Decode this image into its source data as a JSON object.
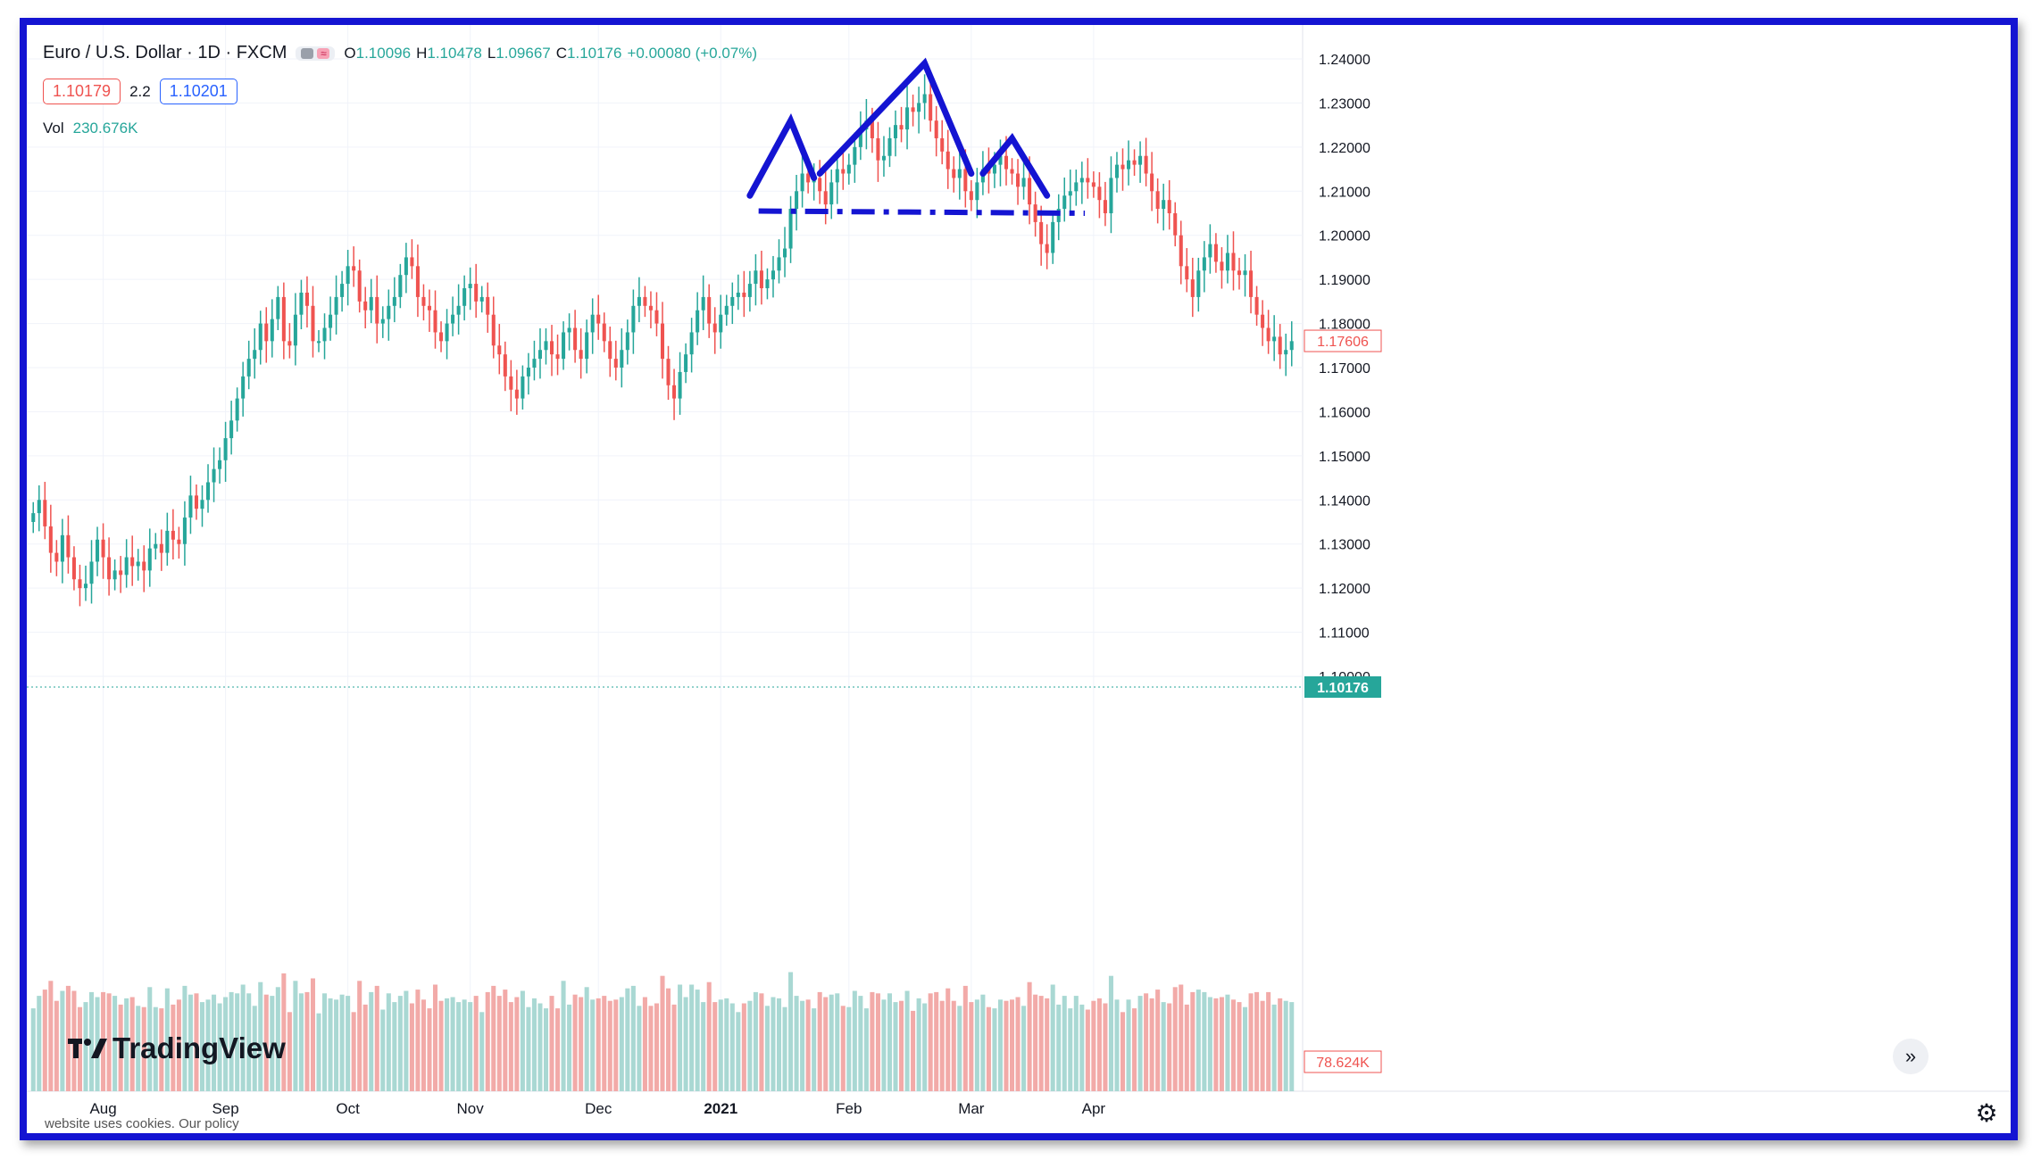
{
  "header": {
    "symbol_title": "Euro / U.S. Dollar · 1D · FXCM",
    "ohlc": [
      {
        "key": "O",
        "value": "1.10096"
      },
      {
        "key": "H",
        "value": "1.10478"
      },
      {
        "key": "L",
        "value": "1.09667"
      },
      {
        "key": "C",
        "value": "1.10176"
      },
      {
        "key": "",
        "value": "+0.00080 (+0.07%)"
      }
    ],
    "sell_price": "1.10179",
    "spread": "2.2",
    "buy_price": "1.10201",
    "vol_label": "Vol",
    "vol_value": "230.676K"
  },
  "footer": {
    "brand": "TradingView",
    "cookie_text": "website uses cookies. Our policy"
  },
  "colors": {
    "up": "#26a69a",
    "down": "#ef5350",
    "volume_up": "#a9d8d3",
    "volume_down": "#f2aaa8",
    "annotation": "#1414d2",
    "frame": "#1414d2"
  },
  "icons": [
    "tradingview-logo-icon",
    "scroll-right-icon",
    "settings-gear-icon",
    "compare-icon"
  ],
  "chart_data": {
    "type": "candlestick",
    "instrument": "Euro / U.S. Dollar",
    "timeframe": "1D",
    "x_ticks": [
      "Aug",
      "Sep",
      "Oct",
      "Nov",
      "Dec",
      "2021",
      "Feb",
      "Mar",
      "Apr"
    ],
    "y_ticks": [
      "1.24000",
      "1.23000",
      "1.22000",
      "1.21000",
      "1.20000",
      "1.19000",
      "1.18000",
      "1.17000",
      "1.16000",
      "1.15000",
      "1.14000",
      "1.13000",
      "1.12000",
      "1.11000",
      "1.10000"
    ],
    "ylim": [
      1.1,
      1.24
    ],
    "last_price_label": "1.17606",
    "current_price_label": "1.10176",
    "volume_label": "78.624K",
    "close_series": [
      1.137,
      1.14,
      1.134,
      1.128,
      1.126,
      1.132,
      1.127,
      1.122,
      1.12,
      1.121,
      1.126,
      1.131,
      1.127,
      1.122,
      1.124,
      1.123,
      1.127,
      1.125,
      1.126,
      1.124,
      1.129,
      1.13,
      1.128,
      1.133,
      1.131,
      1.13,
      1.136,
      1.141,
      1.138,
      1.14,
      1.144,
      1.147,
      1.149,
      1.154,
      1.158,
      1.163,
      1.168,
      1.172,
      1.174,
      1.18,
      1.176,
      1.181,
      1.186,
      1.176,
      1.175,
      1.182,
      1.187,
      1.184,
      1.176,
      1.176,
      1.179,
      1.182,
      1.186,
      1.189,
      1.193,
      1.192,
      1.185,
      1.183,
      1.186,
      1.18,
      1.181,
      1.184,
      1.186,
      1.191,
      1.195,
      1.193,
      1.186,
      1.184,
      1.183,
      1.178,
      1.176,
      1.18,
      1.182,
      1.184,
      1.188,
      1.189,
      1.185,
      1.186,
      1.182,
      1.175,
      1.173,
      1.168,
      1.165,
      1.163,
      1.168,
      1.17,
      1.172,
      1.174,
      1.176,
      1.173,
      1.172,
      1.178,
      1.179,
      1.174,
      1.172,
      1.178,
      1.182,
      1.18,
      1.176,
      1.172,
      1.17,
      1.174,
      1.178,
      1.184,
      1.186,
      1.184,
      1.183,
      1.18,
      1.172,
      1.166,
      1.163,
      1.169,
      1.173,
      1.178,
      1.183,
      1.186,
      1.18,
      1.178,
      1.182,
      1.184,
      1.186,
      1.187,
      1.186,
      1.189,
      1.192,
      1.188,
      1.19,
      1.192,
      1.195,
      1.197,
      1.206,
      1.21,
      1.214,
      1.212,
      1.213,
      1.21,
      1.207,
      1.212,
      1.215,
      1.214,
      1.216,
      1.22,
      1.224,
      1.226,
      1.222,
      1.217,
      1.218,
      1.222,
      1.225,
      1.224,
      1.229,
      1.228,
      1.23,
      1.232,
      1.226,
      1.222,
      1.219,
      1.215,
      1.213,
      1.215,
      1.21,
      1.208,
      1.212,
      1.215,
      1.214,
      1.216,
      1.218,
      1.215,
      1.214,
      1.211,
      1.213,
      1.207,
      1.203,
      1.198,
      1.196,
      1.203,
      1.206,
      1.209,
      1.21,
      1.212,
      1.213,
      1.212,
      1.211,
      1.208,
      1.205,
      1.213,
      1.216,
      1.215,
      1.217,
      1.216,
      1.218,
      1.214,
      1.21,
      1.206,
      1.208,
      1.205,
      1.2,
      1.193,
      1.19,
      1.186,
      1.192,
      1.195,
      1.198,
      1.194,
      1.192,
      1.196,
      1.192,
      1.191,
      1.192,
      1.186,
      1.182,
      1.179,
      1.176,
      1.177,
      1.173,
      1.174,
      1.176
    ]
  }
}
